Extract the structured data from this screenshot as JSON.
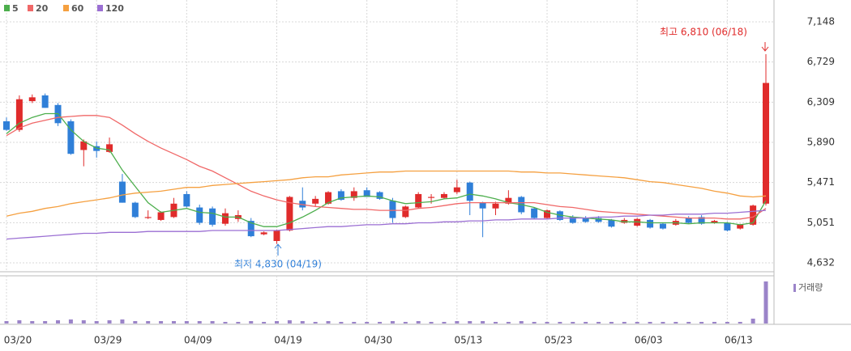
{
  "chart_data": {
    "type": "candlestick",
    "categories": [
      "03/20",
      null,
      null,
      null,
      null,
      null,
      null,
      "03/29",
      null,
      null,
      null,
      null,
      null,
      null,
      "04/09",
      null,
      null,
      null,
      null,
      null,
      null,
      "04/19",
      null,
      null,
      null,
      null,
      null,
      null,
      "04/30",
      null,
      null,
      null,
      null,
      null,
      null,
      "05/13",
      null,
      null,
      null,
      null,
      null,
      null,
      "05/23",
      null,
      null,
      null,
      null,
      null,
      null,
      "06/03",
      null,
      null,
      null,
      null,
      null,
      null,
      "06/13",
      null,
      null,
      null
    ],
    "open": [
      6110,
      6020,
      6320,
      6380,
      6280,
      6110,
      5810,
      5850,
      5790,
      5480,
      5260,
      5100,
      5080,
      5110,
      5350,
      5210,
      5200,
      5040,
      5090,
      5070,
      4930,
      4860,
      4970,
      5280,
      5250,
      5250,
      5380,
      5310,
      5390,
      5370,
      5280,
      5110,
      5210,
      5310,
      5310,
      5370,
      5470,
      5260,
      5200,
      5250,
      5320,
      5200,
      5100,
      5170,
      5110,
      5100,
      5100,
      5080,
      5050,
      5020,
      5080,
      5040,
      5030,
      5100,
      5110,
      5050,
      5050,
      4990,
      5030,
      5250
    ],
    "high": [
      6150,
      6380,
      6390,
      6400,
      6300,
      6130,
      5920,
      5900,
      5940,
      5560,
      5270,
      5180,
      5170,
      5310,
      5380,
      5240,
      5220,
      5200,
      5180,
      5100,
      4960,
      4980,
      5330,
      5420,
      5330,
      5380,
      5400,
      5420,
      5420,
      5380,
      5310,
      5230,
      5370,
      5350,
      5370,
      5500,
      5480,
      5270,
      5270,
      5390,
      5330,
      5210,
      5190,
      5180,
      5130,
      5120,
      5120,
      5090,
      5100,
      5100,
      5090,
      5050,
      5090,
      5120,
      5130,
      5080,
      5060,
      5040,
      5240,
      6810
    ],
    "low": [
      6010,
      6000,
      6300,
      6250,
      6060,
      5760,
      5640,
      5730,
      5780,
      5260,
      5100,
      5090,
      5070,
      5100,
      5210,
      5030,
      5010,
      5020,
      5060,
      4900,
      4920,
      4830,
      4960,
      5180,
      5220,
      5240,
      5280,
      5280,
      5320,
      5290,
      5050,
      5100,
      5200,
      5250,
      5300,
      5350,
      5130,
      4900,
      5130,
      5240,
      5140,
      5090,
      5090,
      5070,
      5040,
      5050,
      5050,
      5000,
      5040,
      5010,
      4990,
      4980,
      5020,
      5040,
      5030,
      5040,
      4960,
      4980,
      5020,
      5230
    ],
    "close": [
      6020,
      6340,
      6360,
      6250,
      6090,
      5770,
      5900,
      5800,
      5870,
      5260,
      5110,
      5110,
      5160,
      5250,
      5220,
      5050,
      5030,
      5150,
      5130,
      4910,
      4950,
      4970,
      5320,
      5210,
      5300,
      5370,
      5290,
      5380,
      5320,
      5300,
      5100,
      5220,
      5350,
      5320,
      5350,
      5420,
      5280,
      5200,
      5250,
      5310,
      5160,
      5100,
      5180,
      5080,
      5050,
      5060,
      5060,
      5010,
      5080,
      5090,
      5000,
      4990,
      5070,
      5050,
      5040,
      5070,
      4970,
      5030,
      5230,
      6510
    ],
    "up_color": "#e02b2b",
    "down_color": "#2f7fd8",
    "series": [
      {
        "name": "5",
        "color": "#4cae4c",
        "values": [
          5980,
          6090,
          6150,
          6190,
          6190,
          6020,
          5900,
          5830,
          5810,
          5600,
          5430,
          5260,
          5160,
          5180,
          5200,
          5160,
          5150,
          5110,
          5110,
          5050,
          5010,
          5010,
          5050,
          5110,
          5180,
          5260,
          5310,
          5320,
          5330,
          5320,
          5280,
          5250,
          5260,
          5270,
          5300,
          5310,
          5350,
          5330,
          5300,
          5260,
          5240,
          5210,
          5160,
          5130,
          5110,
          5100,
          5090,
          5080,
          5060,
          5060,
          5050,
          5050,
          5050,
          5040,
          5050,
          5050,
          5050,
          5030,
          5050,
          5280
        ]
      },
      {
        "name": "20",
        "color": "#f06868",
        "values": [
          5960,
          6040,
          6090,
          6120,
          6150,
          6160,
          6170,
          6170,
          6150,
          6070,
          5980,
          5900,
          5830,
          5770,
          5710,
          5640,
          5590,
          5520,
          5450,
          5380,
          5330,
          5290,
          5260,
          5240,
          5220,
          5210,
          5200,
          5190,
          5190,
          5180,
          5180,
          5180,
          5200,
          5210,
          5230,
          5250,
          5260,
          5260,
          5260,
          5260,
          5260,
          5260,
          5240,
          5220,
          5210,
          5190,
          5170,
          5160,
          5150,
          5140,
          5130,
          5120,
          5110,
          5100,
          5100,
          5100,
          5090,
          5090,
          5110,
          5200
        ]
      },
      {
        "name": "60",
        "color": "#f5a040",
        "values": [
          5120,
          5150,
          5170,
          5200,
          5220,
          5250,
          5270,
          5290,
          5310,
          5340,
          5360,
          5370,
          5380,
          5400,
          5420,
          5420,
          5440,
          5450,
          5460,
          5470,
          5480,
          5490,
          5500,
          5520,
          5530,
          5530,
          5550,
          5560,
          5570,
          5580,
          5580,
          5590,
          5590,
          5590,
          5590,
          5590,
          5590,
          5590,
          5590,
          5590,
          5580,
          5580,
          5570,
          5570,
          5560,
          5550,
          5540,
          5530,
          5520,
          5500,
          5480,
          5470,
          5450,
          5430,
          5410,
          5380,
          5360,
          5330,
          5320,
          5330
        ]
      },
      {
        "name": "120",
        "color": "#9b6fd3",
        "values": [
          4880,
          4890,
          4900,
          4910,
          4920,
          4930,
          4940,
          4940,
          4950,
          4950,
          4950,
          4960,
          4960,
          4960,
          4960,
          4960,
          4970,
          4970,
          4970,
          4970,
          4970,
          4970,
          4980,
          4990,
          5000,
          5010,
          5010,
          5020,
          5030,
          5030,
          5040,
          5040,
          5050,
          5050,
          5060,
          5060,
          5070,
          5070,
          5080,
          5080,
          5090,
          5090,
          5090,
          5100,
          5100,
          5100,
          5110,
          5110,
          5120,
          5120,
          5130,
          5130,
          5140,
          5140,
          5140,
          5150,
          5150,
          5160,
          5170,
          5180
        ]
      }
    ],
    "volume": {
      "name": "거래량",
      "color": "#9b84c9",
      "values": [
        3,
        4,
        3,
        3,
        4,
        5,
        4,
        3,
        4,
        5,
        3,
        3,
        3,
        3,
        3,
        3,
        3,
        2,
        2,
        3,
        2,
        3,
        4,
        3,
        2,
        3,
        2,
        2,
        2,
        2,
        3,
        2,
        3,
        2,
        2,
        3,
        3,
        3,
        2,
        2,
        3,
        2,
        2,
        2,
        2,
        2,
        2,
        2,
        2,
        2,
        2,
        2,
        2,
        2,
        2,
        2,
        2,
        2,
        6,
        52
      ]
    },
    "ylim": [
      4632,
      7148
    ],
    "yticks": [
      {
        "value": 4632,
        "label": "4,632"
      },
      {
        "value": 5051,
        "label": "5,051"
      },
      {
        "value": 5471,
        "label": "5,471"
      },
      {
        "value": 5890,
        "label": "5,890"
      },
      {
        "value": 6309,
        "label": "6,309"
      },
      {
        "value": 6729,
        "label": "6,729"
      },
      {
        "value": 7148,
        "label": "7,148"
      }
    ],
    "grid": true,
    "annotations": [
      {
        "text": "최고 6,810 (06/18)",
        "color": "#e02b2b"
      },
      {
        "text": "최저 4,830 (04/19)",
        "color": "#2f7fd8"
      }
    ]
  }
}
